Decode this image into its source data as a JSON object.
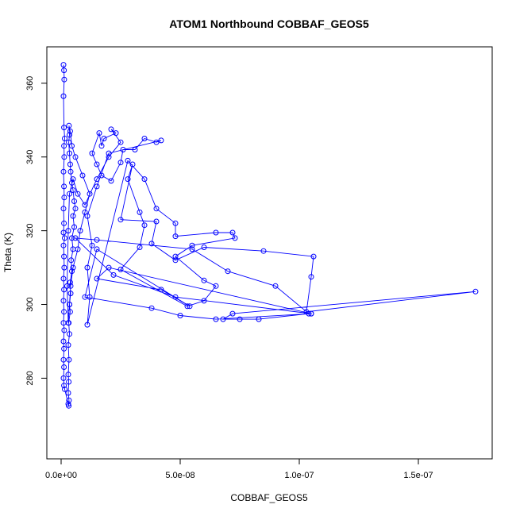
{
  "chart_data": {
    "type": "line",
    "title": "ATOM1 Northbound COBBAF_GEOS5",
    "xlabel": "COBBAF_GEOS5",
    "ylabel": "Theta (K)",
    "xlim": [
      0,
      1.75e-07
    ],
    "ylim": [
      262,
      366
    ],
    "x_ticks": [
      0,
      5e-08,
      1e-07,
      1.5e-07
    ],
    "x_tick_labels": [
      "0.0e+00",
      "5.0e-08",
      "1.0e-07",
      "1.5e-07"
    ],
    "y_ticks": [
      280,
      300,
      320,
      340,
      360
    ],
    "y_tick_labels": [
      "280",
      "300",
      "320",
      "340",
      "360"
    ],
    "grid": false,
    "marker": "open-circle",
    "series": [
      {
        "name": "ATOM1 Northbound",
        "color": "#0000ff",
        "points": [
          [
            1e-09,
            365
          ],
          [
            1.2e-09,
            363.5
          ],
          [
            1.3e-09,
            361
          ],
          [
            1e-09,
            356.5
          ],
          [
            1.2e-09,
            348
          ],
          [
            1.5e-09,
            345
          ],
          [
            1.2e-09,
            343
          ],
          [
            1.3e-09,
            340
          ],
          [
            1e-09,
            336
          ],
          [
            1.2e-09,
            332
          ],
          [
            1.3e-09,
            329
          ],
          [
            1e-09,
            326
          ],
          [
            1.2e-09,
            322
          ],
          [
            1e-09,
            319.5
          ],
          [
            1.5e-09,
            318
          ],
          [
            1e-09,
            316
          ],
          [
            1.2e-09,
            313
          ],
          [
            1.3e-09,
            310
          ],
          [
            1e-09,
            307
          ],
          [
            1.2e-09,
            304
          ],
          [
            1e-09,
            301
          ],
          [
            1.2e-09,
            298
          ],
          [
            1e-09,
            295
          ],
          [
            1.3e-09,
            293
          ],
          [
            1e-09,
            290
          ],
          [
            1.2e-09,
            288
          ],
          [
            1e-09,
            285
          ],
          [
            1.2e-09,
            283
          ],
          [
            1e-09,
            280
          ],
          [
            1.2e-09,
            278
          ],
          [
            1.5e-09,
            277
          ],
          [
            3e-09,
            273
          ],
          [
            3.2e-09,
            272.5
          ],
          [
            3.3e-09,
            274
          ],
          [
            3e-09,
            276
          ],
          [
            3.2e-09,
            279
          ],
          [
            3e-09,
            281
          ],
          [
            3.3e-09,
            285
          ],
          [
            3e-09,
            289
          ],
          [
            3.5e-09,
            292
          ],
          [
            3.2e-09,
            295
          ],
          [
            3.8e-09,
            298
          ],
          [
            3.5e-09,
            300
          ],
          [
            4e-09,
            303
          ],
          [
            3.8e-09,
            306
          ],
          [
            4.5e-09,
            309
          ],
          [
            4.2e-09,
            312
          ],
          [
            5e-09,
            315
          ],
          [
            4.5e-09,
            318
          ],
          [
            5.5e-09,
            321
          ],
          [
            5e-09,
            324
          ],
          [
            6e-09,
            326
          ],
          [
            5.5e-09,
            328
          ],
          [
            5e-09,
            331
          ],
          [
            4.5e-09,
            333
          ],
          [
            4e-09,
            336
          ],
          [
            3.8e-09,
            338
          ],
          [
            3.5e-09,
            341
          ],
          [
            3.2e-09,
            344
          ],
          [
            3.5e-09,
            346
          ],
          [
            3.3e-09,
            348.5
          ],
          [
            3.8e-09,
            347
          ],
          [
            4.5e-09,
            343
          ],
          [
            6e-09,
            340
          ],
          [
            9e-09,
            335
          ],
          [
            1.2e-08,
            330
          ],
          [
            1e-08,
            325
          ],
          [
            8e-09,
            320
          ],
          [
            7e-09,
            315
          ],
          [
            5e-09,
            310
          ],
          [
            4e-09,
            305
          ],
          [
            3.5e-09,
            300
          ],
          [
            3e-09,
            295
          ],
          [
            2.5e-09,
            305
          ],
          [
            3e-09,
            320
          ],
          [
            3.5e-09,
            330
          ],
          [
            5e-09,
            334
          ],
          [
            7e-09,
            330
          ],
          [
            1e-08,
            327
          ],
          [
            1.5e-08,
            334
          ],
          [
            2e-08,
            340
          ],
          [
            2.5e-08,
            344
          ],
          [
            2.1e-08,
            347.5
          ],
          [
            2.3e-08,
            346.5
          ],
          [
            1.8e-08,
            345
          ],
          [
            1.7e-08,
            343
          ],
          [
            1.6e-08,
            346.5
          ],
          [
            1.3e-08,
            341
          ],
          [
            1.5e-08,
            338
          ],
          [
            1.7e-08,
            335
          ],
          [
            2.1e-08,
            333.5
          ],
          [
            2.5e-08,
            338.5
          ],
          [
            2.6e-08,
            342
          ],
          [
            3.1e-08,
            342
          ],
          [
            3.5e-08,
            345
          ],
          [
            4e-08,
            344
          ],
          [
            4.2e-08,
            344.5
          ],
          [
            2e-08,
            341
          ],
          [
            1.5e-08,
            332
          ],
          [
            1.1e-08,
            324
          ],
          [
            1.3e-08,
            316
          ],
          [
            1.1e-08,
            310
          ],
          [
            1.2e-08,
            302
          ],
          [
            1.1e-08,
            294.5
          ],
          [
            2.8e-08,
            339
          ],
          [
            3.5e-08,
            334
          ],
          [
            4e-08,
            326
          ],
          [
            4.8e-08,
            322
          ],
          [
            4.8e-08,
            318.5
          ],
          [
            6.5e-08,
            319.5
          ],
          [
            7.2e-08,
            319.5
          ],
          [
            7.3e-08,
            318
          ],
          [
            5.5e-08,
            316
          ],
          [
            4.8e-08,
            313
          ],
          [
            6e-08,
            306.5
          ],
          [
            6.5e-08,
            305
          ],
          [
            6e-08,
            301
          ],
          [
            5.3e-08,
            299.5
          ],
          [
            2.5e-08,
            309.5
          ],
          [
            3.3e-08,
            315.5
          ],
          [
            3.5e-08,
            321.5
          ],
          [
            3.3e-08,
            325
          ],
          [
            2.8e-08,
            334
          ],
          [
            3e-08,
            338
          ],
          [
            2.5e-08,
            323
          ],
          [
            4e-08,
            322.5
          ],
          [
            3.8e-08,
            316.5
          ],
          [
            4.8e-08,
            312
          ],
          [
            6e-08,
            315.5
          ],
          [
            8.5e-08,
            314.5
          ],
          [
            1.06e-07,
            313
          ],
          [
            1.05e-07,
            307.5
          ],
          [
            1.03e-07,
            298
          ],
          [
            1.74e-07,
            303.5
          ],
          [
            7.2e-08,
            297.5
          ],
          [
            6.8e-08,
            296
          ],
          [
            7.5e-08,
            296
          ],
          [
            8.3e-08,
            296
          ],
          [
            1.04e-07,
            297.5
          ],
          [
            9e-08,
            305
          ],
          [
            7e-08,
            309
          ],
          [
            5.5e-08,
            315
          ],
          [
            1.5e-08,
            317.5
          ],
          [
            6e-09,
            318
          ],
          [
            2.2e-08,
            308
          ],
          [
            4.8e-08,
            302
          ],
          [
            1.05e-07,
            297.5
          ],
          [
            2e-08,
            310
          ],
          [
            1.5e-08,
            307
          ],
          [
            4.2e-08,
            304
          ],
          [
            5.4e-08,
            299.5
          ],
          [
            1.5e-08,
            315
          ],
          [
            1e-08,
            302
          ],
          [
            3.8e-08,
            299
          ],
          [
            5e-08,
            297
          ],
          [
            6.5e-08,
            296
          ],
          [
            1.05e-07,
            297.5
          ]
        ]
      }
    ]
  }
}
